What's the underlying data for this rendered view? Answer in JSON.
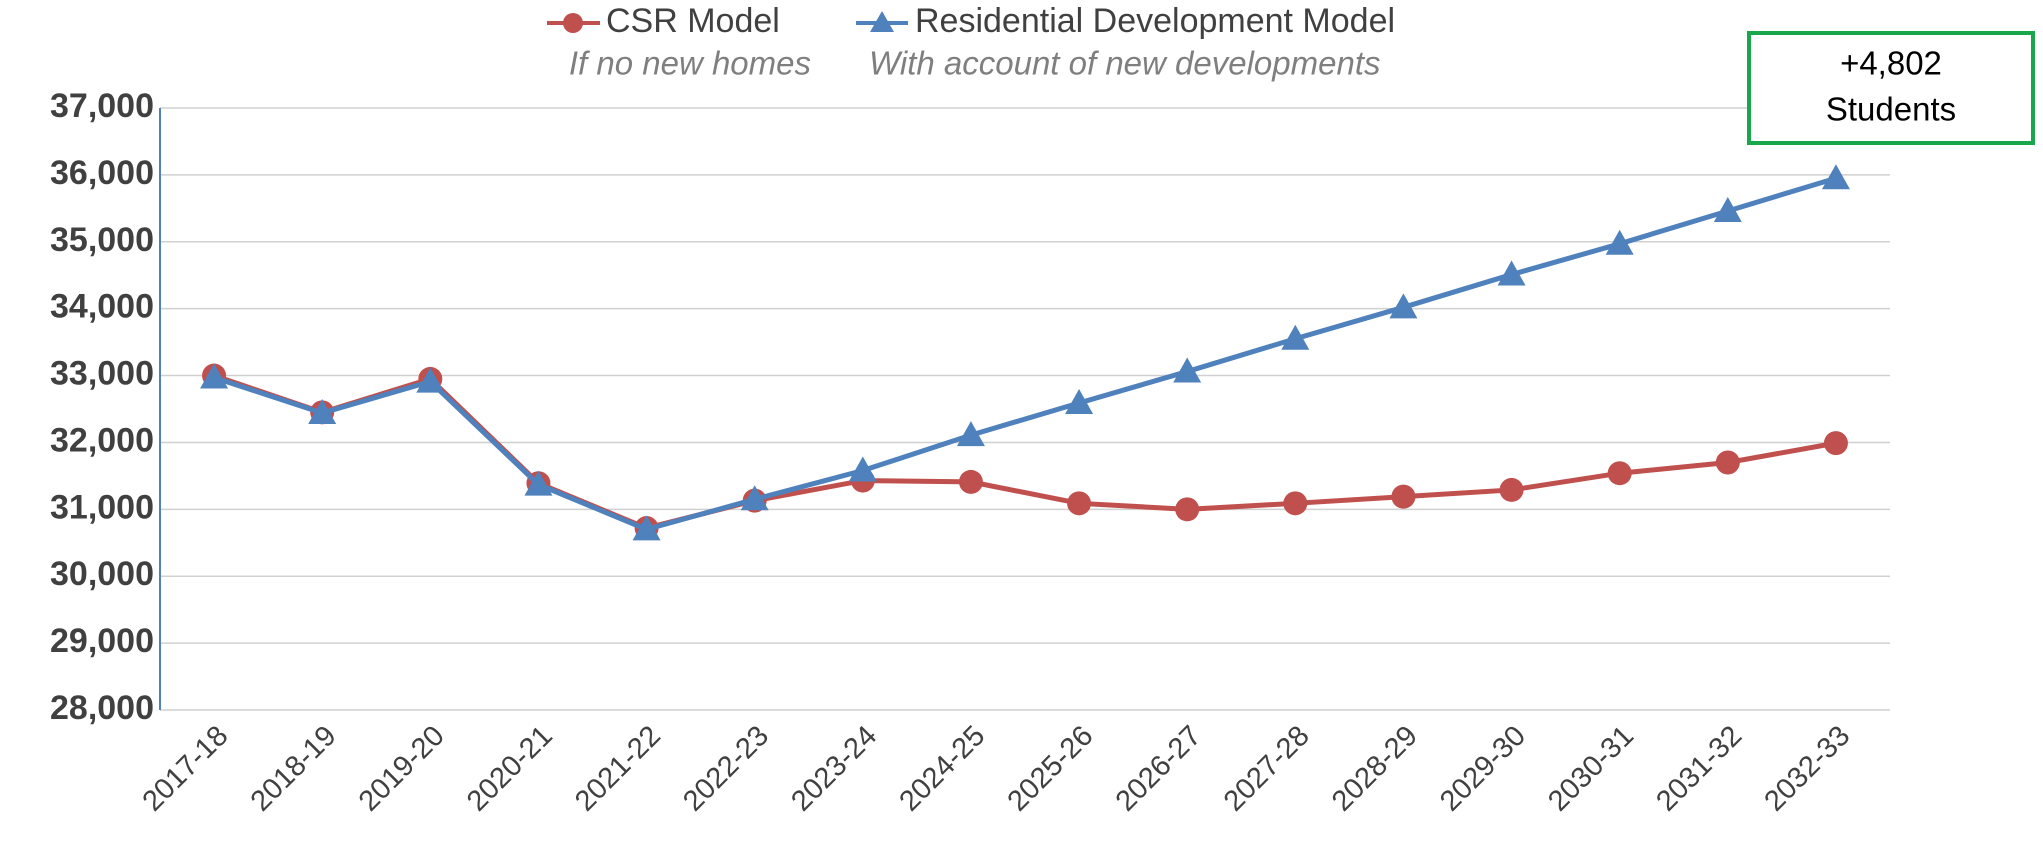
{
  "chart_data": {
    "type": "line",
    "categories": [
      "2017-18",
      "2018-19",
      "2019-20",
      "2020-21",
      "2021-22",
      "2022-23",
      "2023-24",
      "2024-25",
      "2025-26",
      "2026-27",
      "2027-28",
      "2028-29",
      "2029-30",
      "2030-31",
      "2031-32",
      "2032-33"
    ],
    "series": [
      {
        "name": "CSR Model",
        "description": "If no new homes",
        "color": "#c0504d",
        "marker": "circle",
        "values": [
          33000,
          32450,
          32950,
          31390,
          30720,
          31130,
          31430,
          31410,
          31090,
          31000,
          31090,
          31190,
          31290,
          31540,
          31700,
          31990
        ]
      },
      {
        "name": "Residential Development Model",
        "description": "With account of new developments",
        "color": "#4f81bd",
        "marker": "triangle",
        "values": [
          32970,
          32440,
          32910,
          31370,
          30700,
          31150,
          31580,
          32110,
          32590,
          33060,
          33550,
          34020,
          34510,
          34970,
          35460,
          35950
        ]
      }
    ],
    "ylim": [
      28000,
      37000
    ],
    "yticks": [
      {
        "value": 28000,
        "label": "28,000"
      },
      {
        "value": 29000,
        "label": "29,000"
      },
      {
        "value": 30000,
        "label": "30,000"
      },
      {
        "value": 31000,
        "label": "31,000"
      },
      {
        "value": 32000,
        "label": "32,000"
      },
      {
        "value": 33000,
        "label": "33,000"
      },
      {
        "value": 34000,
        "label": "34,000"
      },
      {
        "value": 35000,
        "label": "35,000"
      },
      {
        "value": 36000,
        "label": "36,000"
      },
      {
        "value": 37000,
        "label": "37,000"
      }
    ],
    "grid": true,
    "annotation": [
      "+4,802",
      "Students"
    ],
    "annotation_color": "#1aa64a"
  }
}
